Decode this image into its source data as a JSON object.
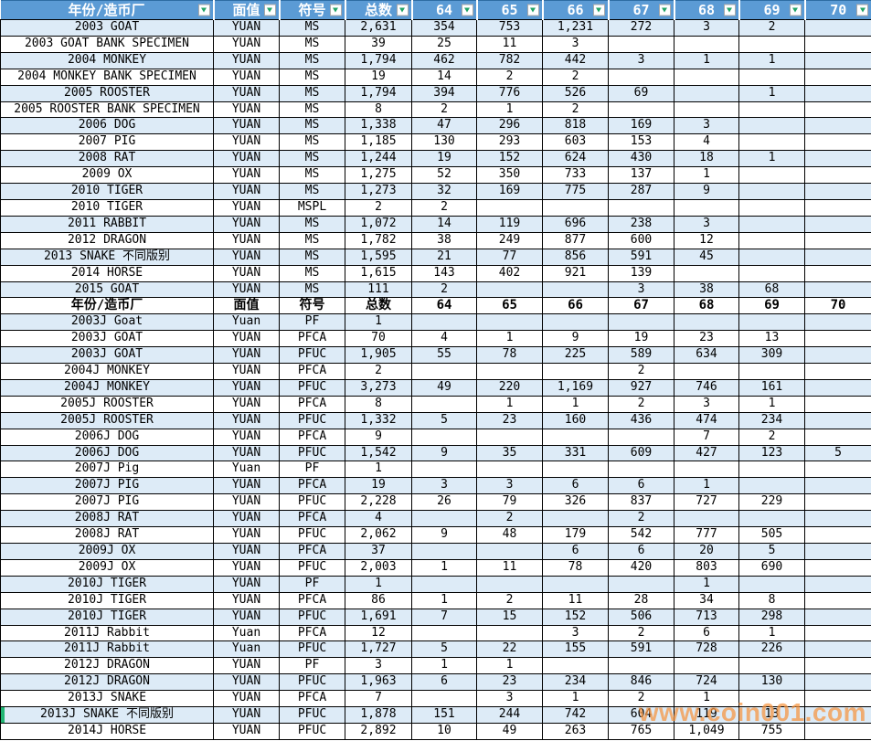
{
  "table": {
    "header": {
      "labels": [
        "年份/造币厂",
        "面值",
        "符号",
        "总数",
        "64",
        "65",
        "66",
        "67",
        "68",
        "69",
        "70"
      ]
    },
    "rows": [
      {
        "cells": [
          "2003 GOAT",
          "YUAN",
          "MS",
          "2,631",
          "354",
          "753",
          "1,231",
          "272",
          "3",
          "2",
          ""
        ]
      },
      {
        "cells": [
          "2003 GOAT BANK SPECIMEN",
          "YUAN",
          "MS",
          "39",
          "25",
          "11",
          "3",
          "",
          "",
          "",
          ""
        ]
      },
      {
        "cells": [
          "2004 MONKEY",
          "YUAN",
          "MS",
          "1,794",
          "462",
          "782",
          "442",
          "3",
          "1",
          "1",
          ""
        ]
      },
      {
        "cells": [
          "2004 MONKEY BANK SPECIMEN",
          "YUAN",
          "MS",
          "19",
          "14",
          "2",
          "2",
          "",
          "",
          "",
          ""
        ]
      },
      {
        "cells": [
          "2005 ROOSTER",
          "YUAN",
          "MS",
          "1,794",
          "394",
          "776",
          "526",
          "69",
          "",
          "1",
          ""
        ]
      },
      {
        "cells": [
          "2005 ROOSTER BANK SPECIMEN",
          "YUAN",
          "MS",
          "8",
          "2",
          "1",
          "2",
          "",
          "",
          "",
          ""
        ]
      },
      {
        "cells": [
          "2006 DOG",
          "YUAN",
          "MS",
          "1,338",
          "47",
          "296",
          "818",
          "169",
          "3",
          "",
          ""
        ]
      },
      {
        "cells": [
          "2007 PIG",
          "YUAN",
          "MS",
          "1,185",
          "130",
          "293",
          "603",
          "153",
          "4",
          "",
          ""
        ]
      },
      {
        "cells": [
          "2008 RAT",
          "YUAN",
          "MS",
          "1,244",
          "19",
          "152",
          "624",
          "430",
          "18",
          "1",
          ""
        ]
      },
      {
        "cells": [
          "2009 OX",
          "YUAN",
          "MS",
          "1,275",
          "52",
          "350",
          "733",
          "137",
          "1",
          "",
          ""
        ]
      },
      {
        "cells": [
          "2010 TIGER",
          "YUAN",
          "MS",
          "1,273",
          "32",
          "169",
          "775",
          "287",
          "9",
          "",
          ""
        ]
      },
      {
        "cells": [
          "2010 TIGER",
          "YUAN",
          "MSPL",
          "2",
          "2",
          "",
          "",
          "",
          "",
          "",
          ""
        ]
      },
      {
        "cells": [
          "2011 RABBIT",
          "YUAN",
          "MS",
          "1,072",
          "14",
          "119",
          "696",
          "238",
          "3",
          "",
          ""
        ]
      },
      {
        "cells": [
          "2012 DRAGON",
          "YUAN",
          "MS",
          "1,782",
          "38",
          "249",
          "877",
          "600",
          "12",
          "",
          ""
        ]
      },
      {
        "cells": [
          "2013 SNAKE 不同版别",
          "YUAN",
          "MS",
          "1,595",
          "21",
          "77",
          "856",
          "591",
          "45",
          "",
          ""
        ]
      },
      {
        "cells": [
          "2014 HORSE",
          "YUAN",
          "MS",
          "1,615",
          "143",
          "402",
          "921",
          "139",
          "",
          "",
          ""
        ]
      },
      {
        "cells": [
          "2015 GOAT",
          "YUAN",
          "MS",
          "111",
          "2",
          "",
          "",
          "3",
          "38",
          "68",
          ""
        ]
      },
      {
        "type": "subheader",
        "cells": [
          "年份/造币厂",
          "面值",
          "符号",
          "总数",
          "64",
          "65",
          "66",
          "67",
          "68",
          "69",
          "70"
        ]
      },
      {
        "cells": [
          "2003J Goat",
          "Yuan",
          "PF",
          "1",
          "",
          "",
          "",
          "",
          "",
          "",
          ""
        ]
      },
      {
        "cells": [
          "2003J GOAT",
          "YUAN",
          "PFCA",
          "70",
          "4",
          "1",
          "9",
          "19",
          "23",
          "13",
          ""
        ]
      },
      {
        "cells": [
          "2003J GOAT",
          "YUAN",
          "PFUC",
          "1,905",
          "55",
          "78",
          "225",
          "589",
          "634",
          "309",
          ""
        ]
      },
      {
        "cells": [
          "2004J MONKEY",
          "YUAN",
          "PFCA",
          "2",
          "",
          "",
          "",
          "2",
          "",
          "",
          ""
        ]
      },
      {
        "cells": [
          "2004J MONKEY",
          "YUAN",
          "PFUC",
          "3,273",
          "49",
          "220",
          "1,169",
          "927",
          "746",
          "161",
          ""
        ]
      },
      {
        "cells": [
          "2005J ROOSTER",
          "YUAN",
          "PFCA",
          "8",
          "",
          "1",
          "1",
          "2",
          "3",
          "1",
          ""
        ]
      },
      {
        "cells": [
          "2005J ROOSTER",
          "YUAN",
          "PFUC",
          "1,332",
          "5",
          "23",
          "160",
          "436",
          "474",
          "234",
          ""
        ]
      },
      {
        "cells": [
          "2006J DOG",
          "YUAN",
          "PFCA",
          "9",
          "",
          "",
          "",
          "",
          "7",
          "2",
          ""
        ]
      },
      {
        "cells": [
          "2006J DOG",
          "YUAN",
          "PFUC",
          "1,542",
          "9",
          "35",
          "331",
          "609",
          "427",
          "123",
          "5"
        ]
      },
      {
        "cells": [
          "2007J Pig",
          "Yuan",
          "PF",
          "1",
          "",
          "",
          "",
          "",
          "",
          "",
          ""
        ]
      },
      {
        "cells": [
          "2007J PIG",
          "YUAN",
          "PFCA",
          "19",
          "3",
          "3",
          "6",
          "6",
          "1",
          "",
          ""
        ]
      },
      {
        "cells": [
          "2007J PIG",
          "YUAN",
          "PFUC",
          "2,228",
          "26",
          "79",
          "326",
          "837",
          "727",
          "229",
          ""
        ]
      },
      {
        "cells": [
          "2008J RAT",
          "YUAN",
          "PFCA",
          "4",
          "",
          "2",
          "",
          "2",
          "",
          "",
          ""
        ]
      },
      {
        "cells": [
          "2008J RAT",
          "YUAN",
          "PFUC",
          "2,062",
          "9",
          "48",
          "179",
          "542",
          "777",
          "505",
          ""
        ]
      },
      {
        "cells": [
          "2009J OX",
          "YUAN",
          "PFCA",
          "37",
          "",
          "",
          "6",
          "6",
          "20",
          "5",
          ""
        ]
      },
      {
        "cells": [
          "2009J OX",
          "YUAN",
          "PFUC",
          "2,003",
          "1",
          "11",
          "78",
          "420",
          "803",
          "690",
          ""
        ]
      },
      {
        "cells": [
          "2010J TIGER",
          "YUAN",
          "PF",
          "1",
          "",
          "",
          "",
          "",
          "1",
          "",
          ""
        ]
      },
      {
        "cells": [
          "2010J TIGER",
          "YUAN",
          "PFCA",
          "86",
          "1",
          "2",
          "11",
          "28",
          "34",
          "8",
          ""
        ]
      },
      {
        "cells": [
          "2010J TIGER",
          "YUAN",
          "PFUC",
          "1,691",
          "7",
          "15",
          "152",
          "506",
          "713",
          "298",
          ""
        ]
      },
      {
        "cells": [
          "2011J Rabbit",
          "Yuan",
          "PFCA",
          "12",
          "",
          "",
          "3",
          "2",
          "6",
          "1",
          ""
        ]
      },
      {
        "cells": [
          "2011J Rabbit",
          "Yuan",
          "PFUC",
          "1,727",
          "5",
          "22",
          "155",
          "591",
          "728",
          "226",
          ""
        ]
      },
      {
        "cells": [
          "2012J DRAGON",
          "YUAN",
          "PF",
          "3",
          "1",
          "1",
          "",
          "",
          "",
          "",
          ""
        ]
      },
      {
        "cells": [
          "2012J DRAGON",
          "YUAN",
          "PFUC",
          "1,963",
          "6",
          "23",
          "234",
          "846",
          "724",
          "130",
          ""
        ]
      },
      {
        "cells": [
          "2013J SNAKE",
          "YUAN",
          "PFCA",
          "7",
          "",
          "3",
          "1",
          "2",
          "1",
          "",
          ""
        ]
      },
      {
        "marker": true,
        "cells": [
          "2013J SNAKE 不同版别",
          "YUAN",
          "PFUC",
          "1,878",
          "151",
          "244",
          "742",
          "604",
          "119",
          "13",
          ""
        ]
      },
      {
        "cells": [
          "2014J HORSE",
          "YUAN",
          "PFUC",
          "2,892",
          "10",
          "49",
          "263",
          "765",
          "1,049",
          "755",
          ""
        ]
      }
    ]
  },
  "watermark": {
    "text": "www.coin001.com"
  },
  "colors": {
    "header_bg": "#5B9BD5",
    "row_alt_bg": "#DDEBF7",
    "row_bg": "#FFFFFF",
    "border": "#000000",
    "filter_arrow_green": "#21A366",
    "marker_green": "#21B573",
    "watermark_orange": "#F7953F"
  }
}
